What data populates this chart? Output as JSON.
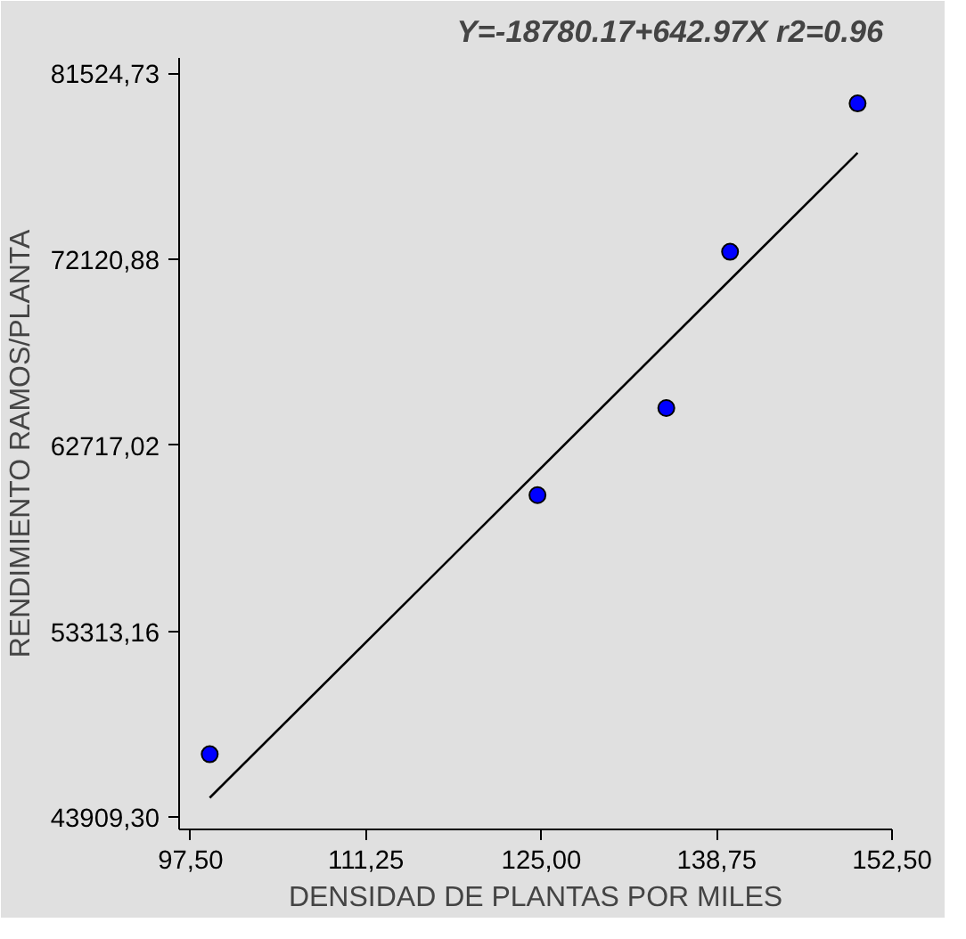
{
  "chart_data": {
    "type": "scatter",
    "title": "Y=-18780.17+642.97X  r2=0.96",
    "xlabel": "DENSIDAD DE PLANTAS POR MILES",
    "ylabel": "RENDIMIENTO RAMOS/PLANTA",
    "series": [
      {
        "color": "#0000ff",
        "marker": "circle",
        "x": [
          99,
          124.7,
          134.8,
          139.8,
          149.8
        ],
        "values": [
          47100,
          60200,
          64600,
          72500,
          80000
        ]
      },
      {
        "type": "line",
        "marker": "none",
        "color": "#000000",
        "x": [
          99,
          149.8
        ],
        "values": [
          44900,
          77500
        ]
      }
    ],
    "xlim": [
      96.6,
      152.5
    ],
    "ylim": [
      43300,
      82300
    ],
    "xticks": [
      {
        "value": 97.5,
        "label": "97,50"
      },
      {
        "value": 111.25,
        "label": "111,25"
      },
      {
        "value": 125,
        "label": "125,00"
      },
      {
        "value": 138.75,
        "label": "138,75"
      },
      {
        "value": 152.5,
        "label": "152,50"
      }
    ],
    "yticks": [
      {
        "value": 43909.3,
        "label": "43909,30"
      },
      {
        "value": 53313.16,
        "label": "53313,16"
      },
      {
        "value": 62717.02,
        "label": "62717,02"
      },
      {
        "value": 72120.88,
        "label": "72120,88"
      },
      {
        "value": 81524.73,
        "label": "81524,73"
      }
    ]
  }
}
